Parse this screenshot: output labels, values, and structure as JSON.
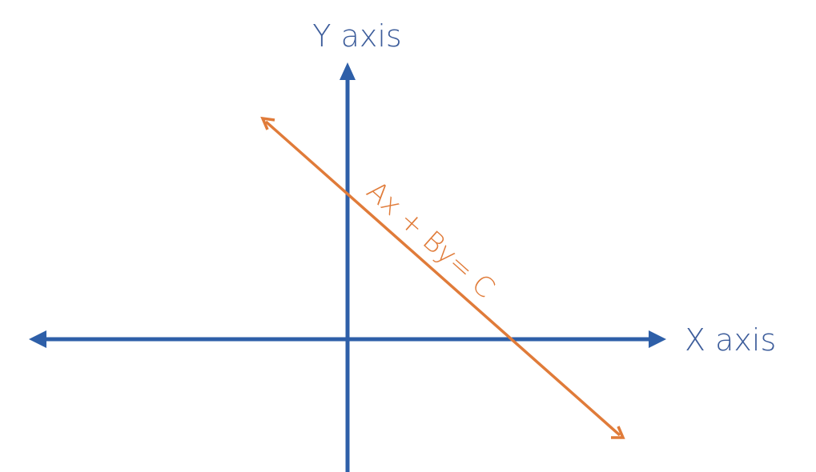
{
  "diagram": {
    "y_axis_label": "Y axis",
    "x_axis_label": "X axis",
    "line_equation": "Ax + By= C"
  },
  "colors": {
    "axis": "#2e5fa8",
    "line": "#e07b39",
    "label_axis": "#3d5d9b",
    "label_line": "#e07b39",
    "background": "#ffffff"
  },
  "icons": {
    "axis_arrowheads": "triangle-arrow-icon",
    "line_arrowheads": "open-arrow-icon"
  }
}
